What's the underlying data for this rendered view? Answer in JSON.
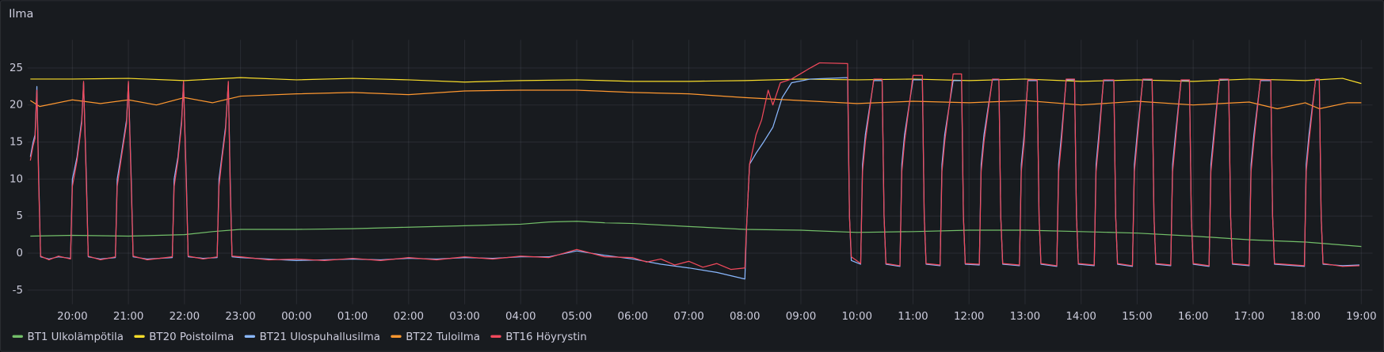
{
  "chart_data": {
    "type": "line",
    "title": "Ilma",
    "xlim": [
      "19:12",
      "19:12"
    ],
    "xticks": [
      "20:00",
      "21:00",
      "22:00",
      "23:00",
      "00:00",
      "01:00",
      "02:00",
      "03:00",
      "04:00",
      "05:00",
      "06:00",
      "07:00",
      "08:00",
      "09:00",
      "10:00",
      "11:00",
      "12:00",
      "13:00",
      "14:00",
      "15:00",
      "16:00",
      "17:00",
      "18:00",
      "19:00"
    ],
    "ylim": [
      -6.9,
      28.8
    ],
    "yticks": [
      -5,
      0,
      5,
      10,
      15,
      20,
      25
    ],
    "grid": true,
    "legend": "bottom",
    "series": [
      {
        "name": "BT1 Ulkolämpötila",
        "color": "#73bf69",
        "x": [
          "19:15",
          "20:00",
          "21:00",
          "22:00",
          "22:30",
          "23:00",
          "00:00",
          "01:00",
          "02:00",
          "03:00",
          "04:00",
          "04:30",
          "05:00",
          "05:30",
          "06:00",
          "07:00",
          "08:00",
          "09:00",
          "10:00",
          "11:00",
          "12:00",
          "13:00",
          "14:00",
          "15:00",
          "16:00",
          "17:00",
          "18:00",
          "19:00"
        ],
        "values": [
          2.3,
          2.4,
          2.3,
          2.5,
          2.9,
          3.2,
          3.2,
          3.3,
          3.5,
          3.7,
          3.9,
          4.2,
          4.3,
          4.1,
          4.0,
          3.6,
          3.2,
          3.1,
          2.8,
          2.9,
          3.1,
          3.1,
          2.9,
          2.7,
          2.3,
          1.8,
          1.5,
          0.9
        ]
      },
      {
        "name": "BT20 Poistoilma",
        "color": "#fade2a",
        "x": [
          "19:15",
          "20:00",
          "21:00",
          "22:00",
          "23:00",
          "00:00",
          "01:00",
          "02:00",
          "03:00",
          "04:00",
          "05:00",
          "06:00",
          "07:00",
          "08:00",
          "09:00",
          "10:00",
          "11:00",
          "12:00",
          "13:00",
          "14:00",
          "15:00",
          "16:00",
          "17:00",
          "18:00",
          "18:40",
          "19:00"
        ],
        "values": [
          23.5,
          23.5,
          23.6,
          23.3,
          23.7,
          23.4,
          23.6,
          23.4,
          23.1,
          23.3,
          23.4,
          23.2,
          23.2,
          23.3,
          23.5,
          23.4,
          23.5,
          23.3,
          23.5,
          23.2,
          23.4,
          23.2,
          23.5,
          23.3,
          23.6,
          22.9
        ]
      },
      {
        "name": "BT21 Ulospuhallusilma",
        "color": "#8ab8ff",
        "x": [
          "19:15",
          "19:18",
          "19:20",
          "19:22",
          "19:24",
          "19:26",
          "19:35",
          "19:45",
          "19:58",
          "20:00",
          "20:05",
          "20:10",
          "20:12",
          "20:15",
          "20:17",
          "20:30",
          "20:46",
          "20:48",
          "20:52",
          "20:58",
          "21:00",
          "21:03",
          "21:05",
          "21:20",
          "21:47",
          "21:49",
          "21:53",
          "21:57",
          "21:59",
          "22:02",
          "22:04",
          "22:20",
          "22:35",
          "22:37",
          "22:40",
          "22:44",
          "22:47",
          "22:49",
          "22:51",
          "23:00",
          "23:30",
          "00:00",
          "00:30",
          "01:00",
          "01:30",
          "02:00",
          "02:30",
          "03:00",
          "03:30",
          "04:00",
          "04:30",
          "05:00",
          "05:30",
          "06:00",
          "06:30",
          "07:00",
          "07:30",
          "08:00",
          "08:02",
          "08:05",
          "08:12",
          "08:20",
          "08:30",
          "08:40",
          "08:50",
          "09:10",
          "09:50",
          "09:52",
          "09:54",
          "10:04",
          "10:06",
          "10:09",
          "10:18",
          "10:27",
          "10:29",
          "10:31",
          "10:46",
          "10:48",
          "10:51",
          "11:00",
          "11:10",
          "11:12",
          "11:14",
          "11:29",
          "11:31",
          "11:34",
          "11:43",
          "11:52",
          "11:54",
          "11:56",
          "12:11",
          "12:13",
          "12:16",
          "12:25",
          "12:32",
          "12:34",
          "12:36",
          "12:54",
          "12:56",
          "12:59",
          "13:03",
          "13:13",
          "13:15",
          "13:17",
          "13:34",
          "13:36",
          "13:39",
          "13:44",
          "13:53",
          "13:55",
          "13:57",
          "14:14",
          "14:16",
          "14:19",
          "14:24",
          "14:35",
          "14:37",
          "14:39",
          "14:55",
          "14:57",
          "15:00",
          "15:06",
          "15:16",
          "15:18",
          "15:20",
          "15:36",
          "15:38",
          "15:41",
          "15:47",
          "15:56",
          "15:58",
          "16:00",
          "16:17",
          "16:19",
          "16:22",
          "16:28",
          "16:38",
          "16:40",
          "16:42",
          "17:00",
          "17:02",
          "17:05",
          "17:12",
          "17:23",
          "17:25",
          "17:27",
          "17:59",
          "18:01",
          "18:04",
          "18:11",
          "18:15",
          "18:17",
          "18:19",
          "18:40",
          "18:58"
        ],
        "values": [
          13,
          15,
          16,
          22.5,
          10,
          -0.5,
          -0.8,
          -0.5,
          -0.7,
          10,
          13,
          18,
          23,
          10,
          -0.5,
          -0.8,
          -0.6,
          10,
          13,
          18,
          23,
          10,
          -0.5,
          -0.8,
          -0.6,
          10,
          13,
          18,
          23,
          10,
          -0.5,
          -0.7,
          -0.6,
          10,
          13,
          17,
          23,
          10,
          -0.5,
          -0.6,
          -0.8,
          -1,
          -0.9,
          -0.8,
          -0.9,
          -0.7,
          -0.8,
          -0.6,
          -0.7,
          -0.5,
          -0.5,
          0.3,
          -0.3,
          -0.8,
          -1.5,
          -2,
          -2.6,
          -3.5,
          4,
          12,
          13.5,
          15,
          17,
          21,
          23,
          23.5,
          23.7,
          5,
          -1,
          -1.5,
          12,
          16,
          23.3,
          23.3,
          5,
          -1.5,
          -1.8,
          12,
          16,
          23.4,
          23.4,
          5,
          -1.5,
          -1.7,
          12,
          16,
          23.3,
          23.3,
          5,
          -1.5,
          -1.6,
          12,
          16,
          23.4,
          23.4,
          5,
          -1.5,
          -1.7,
          12,
          16,
          23.3,
          23.3,
          5,
          -1.5,
          -1.8,
          12,
          16,
          23.4,
          23.4,
          5,
          -1.5,
          -1.7,
          12,
          16,
          23.3,
          23.3,
          5,
          -1.5,
          -1.8,
          12,
          16,
          23.4,
          23.4,
          5,
          -1.5,
          -1.7,
          12,
          16,
          23.3,
          23.3,
          5,
          -1.5,
          -1.8,
          12,
          16,
          23.4,
          23.4,
          5,
          -1.5,
          -1.7,
          12,
          16,
          23.3,
          23.3,
          5,
          -1.5,
          -1.8,
          12,
          16,
          23.4,
          23.4,
          5,
          -1.5,
          -1.7,
          -1.6
        ]
      },
      {
        "name": "BT22 Tuloilma",
        "color": "#ff9830",
        "x": [
          "19:15",
          "19:25",
          "20:00",
          "20:30",
          "21:00",
          "21:30",
          "22:00",
          "22:30",
          "23:00",
          "00:00",
          "01:00",
          "02:00",
          "03:00",
          "04:00",
          "05:00",
          "06:00",
          "07:00",
          "08:00",
          "09:00",
          "10:00",
          "11:00",
          "12:00",
          "13:00",
          "14:00",
          "15:00",
          "16:00",
          "17:00",
          "17:30",
          "18:00",
          "18:15",
          "18:45",
          "19:00"
        ],
        "values": [
          20.6,
          19.8,
          20.7,
          20.2,
          20.7,
          20.0,
          21.0,
          20.3,
          21.2,
          21.5,
          21.7,
          21.4,
          21.9,
          22.0,
          22.0,
          21.7,
          21.5,
          21.0,
          20.6,
          20.2,
          20.5,
          20.3,
          20.6,
          20.0,
          20.5,
          20.0,
          20.4,
          19.5,
          20.3,
          19.5,
          20.3,
          20.3
        ]
      },
      {
        "name": "BT16 Höyrystin",
        "color": "#f2495c",
        "x": [
          "19:15",
          "19:18",
          "19:20",
          "19:22",
          "19:24",
          "19:26",
          "19:35",
          "19:45",
          "19:58",
          "20:00",
          "20:05",
          "20:10",
          "20:12",
          "20:15",
          "20:17",
          "20:30",
          "20:46",
          "20:48",
          "20:52",
          "20:58",
          "21:00",
          "21:03",
          "21:05",
          "21:20",
          "21:47",
          "21:49",
          "21:53",
          "21:57",
          "21:59",
          "22:02",
          "22:04",
          "22:20",
          "22:35",
          "22:37",
          "22:40",
          "22:44",
          "22:47",
          "22:49",
          "22:51",
          "23:00",
          "23:30",
          "00:00",
          "00:30",
          "01:00",
          "01:30",
          "02:00",
          "02:30",
          "03:00",
          "03:30",
          "04:00",
          "04:30",
          "05:00",
          "05:30",
          "06:00",
          "06:15",
          "06:30",
          "06:45",
          "07:00",
          "07:15",
          "07:30",
          "07:45",
          "08:00",
          "08:02",
          "08:05",
          "08:12",
          "08:18",
          "08:25",
          "08:30",
          "08:38",
          "08:50",
          "09:10",
          "09:20",
          "09:50",
          "09:52",
          "09:54",
          "10:04",
          "10:06",
          "10:09",
          "10:18",
          "10:27",
          "10:29",
          "10:31",
          "10:46",
          "10:48",
          "10:51",
          "11:00",
          "11:10",
          "11:12",
          "11:14",
          "11:29",
          "11:31",
          "11:34",
          "11:43",
          "11:52",
          "11:54",
          "11:56",
          "12:11",
          "12:13",
          "12:16",
          "12:25",
          "12:32",
          "12:34",
          "12:36",
          "12:54",
          "12:56",
          "12:59",
          "13:03",
          "13:13",
          "13:15",
          "13:17",
          "13:34",
          "13:36",
          "13:39",
          "13:44",
          "13:53",
          "13:55",
          "13:57",
          "14:14",
          "14:16",
          "14:19",
          "14:24",
          "14:35",
          "14:37",
          "14:39",
          "14:55",
          "14:57",
          "15:00",
          "15:06",
          "15:16",
          "15:18",
          "15:20",
          "15:36",
          "15:38",
          "15:41",
          "15:47",
          "15:56",
          "15:58",
          "16:00",
          "16:17",
          "16:19",
          "16:22",
          "16:28",
          "16:38",
          "16:40",
          "16:42",
          "17:00",
          "17:02",
          "17:05",
          "17:12",
          "17:23",
          "17:25",
          "17:27",
          "17:59",
          "18:01",
          "18:04",
          "18:11",
          "18:15",
          "18:17",
          "18:19",
          "18:40",
          "18:58"
        ],
        "values": [
          12.5,
          14.5,
          15.5,
          22,
          9,
          -0.4,
          -0.9,
          -0.4,
          -0.8,
          9,
          12.5,
          17.5,
          23.2,
          9,
          -0.4,
          -0.9,
          -0.5,
          9,
          12.5,
          17.5,
          23.2,
          9,
          -0.4,
          -0.9,
          -0.5,
          9,
          12.5,
          17.5,
          23.2,
          9,
          -0.4,
          -0.8,
          -0.5,
          9,
          12.5,
          16.5,
          23.2,
          9,
          -0.4,
          -0.5,
          -0.9,
          -0.8,
          -1,
          -0.7,
          -1,
          -0.6,
          -0.9,
          -0.5,
          -0.8,
          -0.4,
          -0.6,
          0.5,
          -0.5,
          -0.6,
          -1.2,
          -0.8,
          -1.6,
          -1.1,
          -1.9,
          -1.4,
          -2.2,
          -2,
          4,
          12,
          16,
          18,
          22,
          20,
          23,
          23.5,
          25,
          25.7,
          25.6,
          5,
          -0.5,
          -1.4,
          11,
          15,
          23.5,
          23.5,
          5,
          -1.4,
          -1.7,
          11,
          15,
          24,
          24,
          5,
          -1.4,
          -1.6,
          11,
          15,
          24.2,
          24.2,
          5,
          -1.4,
          -1.5,
          11,
          15,
          23.5,
          23.5,
          5,
          -1.4,
          -1.6,
          11,
          15,
          23.4,
          23.4,
          5,
          -1.4,
          -1.7,
          11,
          15,
          23.5,
          23.5,
          5,
          -1.4,
          -1.6,
          11,
          15,
          23.4,
          23.4,
          5,
          -1.4,
          -1.7,
          11,
          15,
          23.5,
          23.5,
          5,
          -1.4,
          -1.6,
          11,
          15,
          23.4,
          23.4,
          5,
          -1.4,
          -1.7,
          11,
          15,
          23.5,
          23.5,
          5,
          -1.4,
          -1.6,
          11,
          15,
          23.4,
          23.4,
          5,
          -1.4,
          -1.7,
          11,
          15,
          23.5,
          23.5,
          5,
          -1.4,
          -1.8,
          -1.7
        ]
      }
    ]
  }
}
